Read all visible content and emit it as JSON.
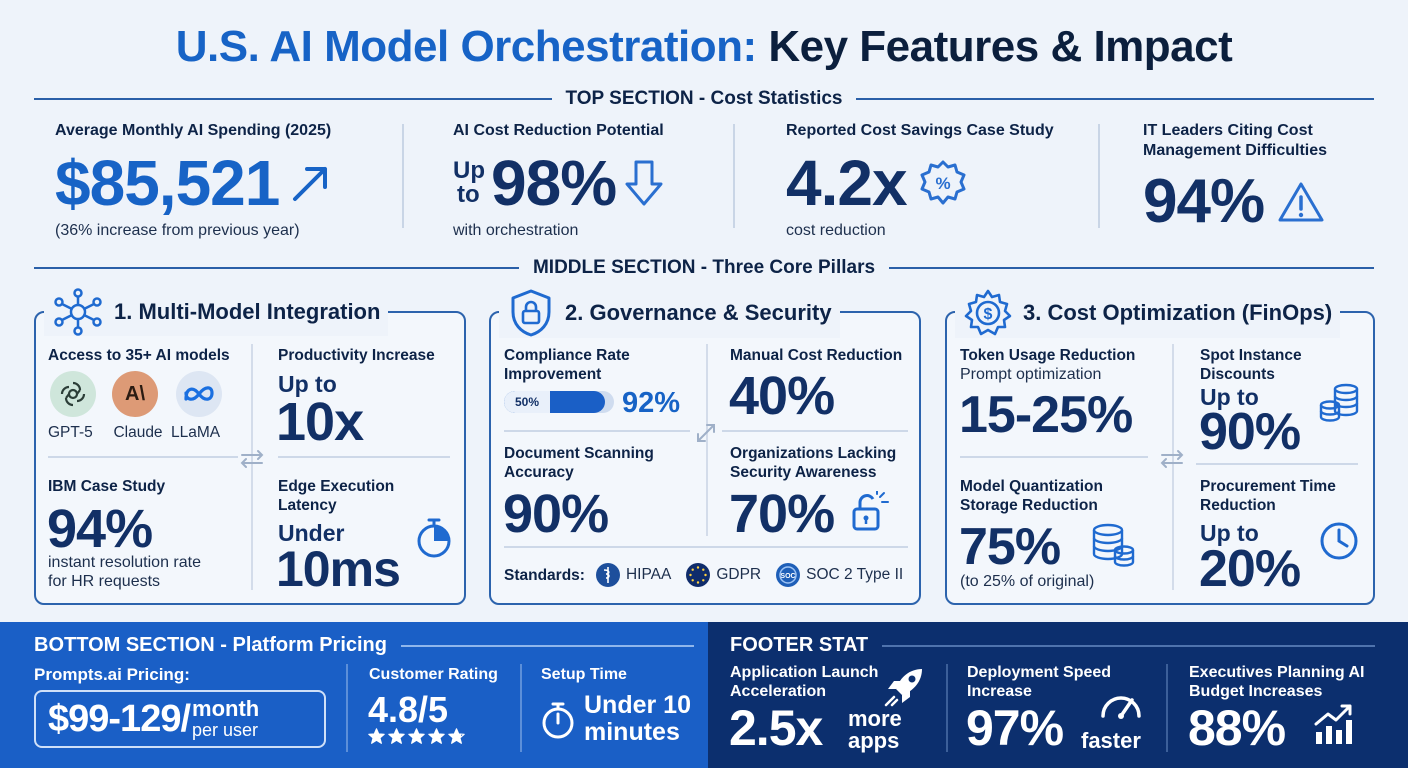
{
  "title": {
    "part1": "U.S. AI Model Orchestration:",
    "part2": "Key Features & Impact"
  },
  "top_section": {
    "heading": "TOP SECTION - Cost Statistics",
    "stats": [
      {
        "label": "Average Monthly AI Spending (2025)",
        "value": "$85,521",
        "note": "(36% increase from previous year)",
        "icon": "trend-up-arrow-icon"
      },
      {
        "label": "AI Cost Reduction Potential",
        "prefix_line1": "Up",
        "prefix_line2": "to",
        "value": "98%",
        "note": "with orchestration",
        "icon": "down-arrow-icon"
      },
      {
        "label": "Reported Cost Savings Case Study",
        "value": "4.2x",
        "note": "cost reduction",
        "icon": "percent-badge-icon"
      },
      {
        "label_line1": "IT Leaders Citing Cost",
        "label_line2": "Management Difficulties",
        "value": "94%",
        "icon": "warning-icon"
      }
    ]
  },
  "middle_section": {
    "heading": "MIDDLE SECTION - Three Core Pillars",
    "pillar1": {
      "title": "1. Multi-Model Integration",
      "access_label": "Access to 35+ AI models",
      "models": [
        "GPT-5",
        "Claude",
        "LLaMA"
      ],
      "productivity_label": "Productivity Increase",
      "productivity_prefix": "Up to",
      "productivity_value": "10x",
      "ibm_label": "IBM Case Study",
      "ibm_value": "94%",
      "ibm_note_1": "instant resolution rate",
      "ibm_note_2": "for HR requests",
      "edge_label_1": "Edge Execution",
      "edge_label_2": "Latency",
      "edge_prefix": "Under",
      "edge_value": "10ms"
    },
    "pillar2": {
      "title": "2. Governance & Security",
      "compliance_label_1": "Compliance Rate",
      "compliance_label_2": "Improvement",
      "compliance_from": "50%",
      "compliance_to": "92%",
      "compliance_progress": 0.92,
      "manual_label": "Manual Cost Reduction",
      "manual_value": "40%",
      "doc_label_1": "Document Scanning",
      "doc_label_2": "Accuracy",
      "doc_value": "90%",
      "org_label_1": "Organizations Lacking",
      "org_label_2": "Security Awareness",
      "org_value": "70%",
      "standards_label": "Standards:",
      "standards": [
        "HIPAA",
        "GDPR",
        "SOC 2 Type II"
      ]
    },
    "pillar3": {
      "title": "3. Cost Optimization (FinOps)",
      "token_label": "Token Usage Reduction",
      "token_sub": "Prompt optimization",
      "token_value": "15-25%",
      "spot_label_1": "Spot Instance",
      "spot_label_2": "Discounts",
      "spot_prefix": "Up to",
      "spot_value": "90%",
      "quant_label_1": "Model Quantization",
      "quant_label_2": "Storage Reduction",
      "quant_value": "75%",
      "quant_note": "(to 25% of original)",
      "proc_label_1": "Procurement Time",
      "proc_label_2": "Reduction",
      "proc_prefix": "Up to",
      "proc_value": "20%"
    }
  },
  "bottom_section": {
    "heading": "BOTTOM SECTION - Platform Pricing",
    "pricing_label": "Prompts.ai Pricing:",
    "price": "$99-129/",
    "price_unit_1": "month",
    "price_unit_2": "per user",
    "rating_label": "Customer Rating",
    "rating_value": "4.8/5",
    "rating_stars": 4.8,
    "setup_label": "Setup Time",
    "setup_value_1": "Under 10",
    "setup_value_2": "minutes"
  },
  "footer": {
    "heading": "FOOTER STAT",
    "launch_label_1": "Application Launch",
    "launch_label_2": "Acceleration",
    "launch_value": "2.5x",
    "launch_unit_1": "more",
    "launch_unit_2": "apps",
    "deploy_label_1": "Deployment Speed",
    "deploy_label_2": "Increase",
    "deploy_value": "97%",
    "deploy_unit": "faster",
    "exec_label_1": "Executives Planning AI",
    "exec_label_2": "Budget Increases",
    "exec_value": "88%"
  },
  "colors": {
    "primary_blue": "#1763c6",
    "navy": "#123066",
    "bottom_blue": "#1a5fc6",
    "footer_navy": "#0c2f6e"
  }
}
